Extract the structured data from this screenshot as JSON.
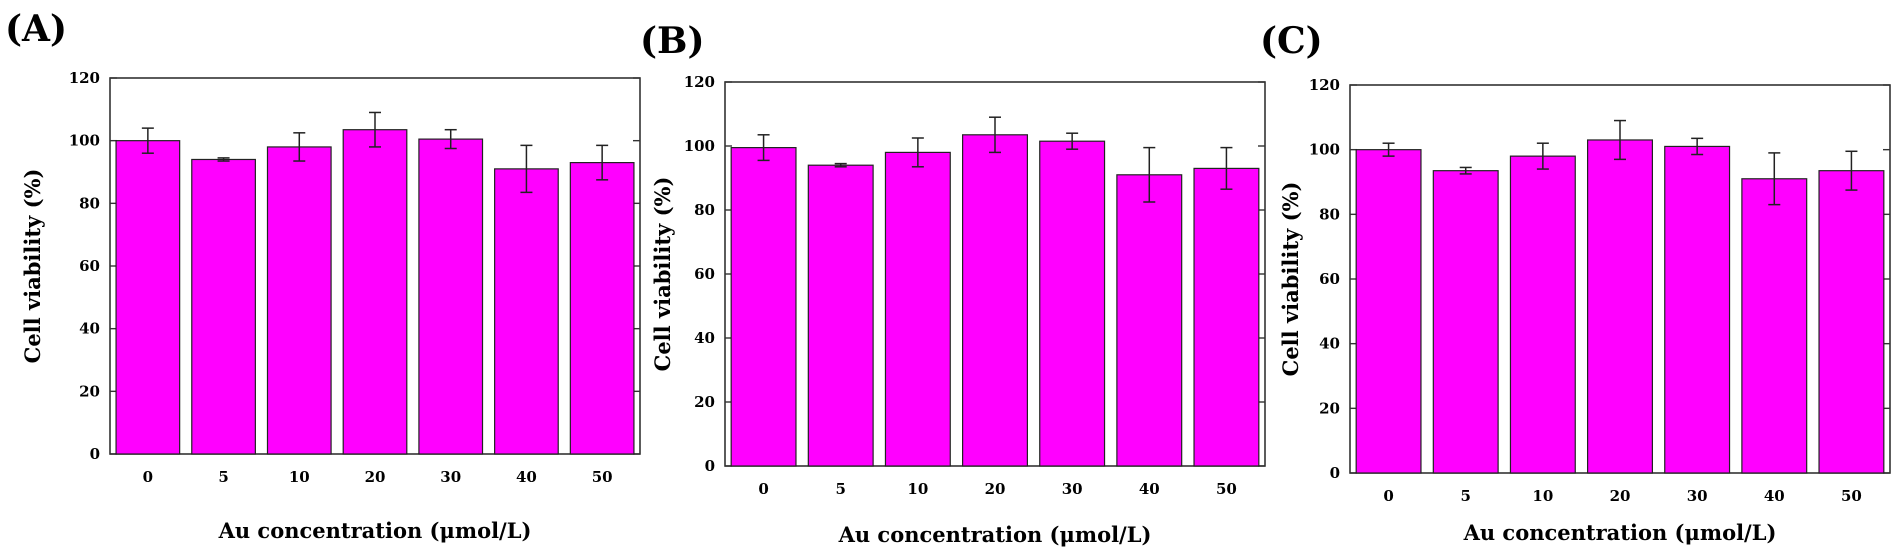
{
  "chart_data": [
    {
      "type": "bar",
      "panel_label": "(A)",
      "categories": [
        "0",
        "5",
        "10",
        "20",
        "30",
        "40",
        "50"
      ],
      "values": [
        100,
        94,
        98,
        103.5,
        100.5,
        91,
        93
      ],
      "errors": [
        4,
        0.5,
        4.5,
        5.5,
        3,
        7.5,
        5.5
      ],
      "xlabel": "Au concentration (μmol/L)",
      "ylabel": "Cell viability (%)",
      "ylim": [
        0,
        120
      ],
      "yticks": [
        "0",
        "20",
        "40",
        "60",
        "80",
        "100",
        "120"
      ],
      "bar_color": "#ff00ff"
    },
    {
      "type": "bar",
      "panel_label": "(B)",
      "categories": [
        "0",
        "5",
        "10",
        "20",
        "30",
        "40",
        "50"
      ],
      "values": [
        99.5,
        94,
        98,
        103.5,
        101.5,
        91,
        93
      ],
      "errors": [
        4,
        0.5,
        4.5,
        5.5,
        2.5,
        8.5,
        6.5
      ],
      "xlabel": "Au concentration (μmol/L)",
      "ylabel": "Cell viability (%)",
      "ylim": [
        0,
        120
      ],
      "yticks": [
        "0",
        "20",
        "40",
        "60",
        "80",
        "100",
        "120"
      ],
      "bar_color": "#ff00ff"
    },
    {
      "type": "bar",
      "panel_label": "(C)",
      "categories": [
        "0",
        "5",
        "10",
        "20",
        "30",
        "40",
        "50"
      ],
      "values": [
        100,
        93.5,
        98,
        103,
        101,
        91,
        93.5
      ],
      "errors": [
        2,
        1,
        4,
        6,
        2.5,
        8,
        6
      ],
      "xlabel": "Au concentration (μmol/L)",
      "ylabel": "Cell viability (%)",
      "ylim": [
        0,
        120
      ],
      "yticks": [
        "0",
        "20",
        "40",
        "60",
        "80",
        "100",
        "120"
      ],
      "bar_color": "#ff00ff"
    }
  ]
}
